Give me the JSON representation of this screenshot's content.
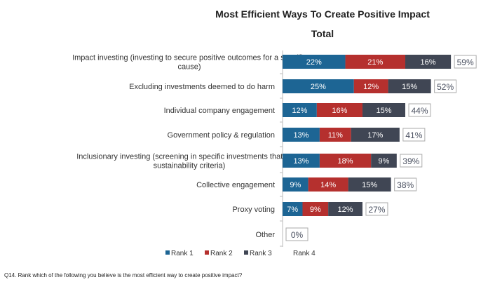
{
  "chart_data": {
    "type": "bar",
    "orientation": "horizontal",
    "stacked": true,
    "title": "Most Efficient Ways To Create Positive Impact",
    "subtitle": "Total",
    "categories": [
      [
        "Impact investing (investing to secure positive outcomes for a specific",
        "cause)"
      ],
      [
        "Excluding investments deemed to do harm"
      ],
      [
        "Individual company engagement"
      ],
      [
        "Government policy & regulation"
      ],
      [
        "Inclusionary investing (screening in specific investments that meet",
        "sustainability criteria)"
      ],
      [
        "Collective engagement"
      ],
      [
        "Proxy voting"
      ],
      [
        "Other"
      ]
    ],
    "series": [
      {
        "name": "Rank 1",
        "color": "#1d6594",
        "values": [
          22,
          25,
          12,
          13,
          13,
          9,
          7,
          0
        ]
      },
      {
        "name": "Rank 2",
        "color": "#b5302e",
        "values": [
          21,
          12,
          16,
          11,
          18,
          14,
          9,
          0
        ]
      },
      {
        "name": "Rank 3",
        "color": "#404654",
        "values": [
          16,
          15,
          15,
          17,
          9,
          15,
          12,
          0
        ]
      },
      {
        "name": "Rank 4",
        "color": "#ffffff",
        "values": [
          0,
          0,
          0,
          0,
          0,
          0,
          0,
          0
        ]
      }
    ],
    "totals": [
      "59%",
      "52%",
      "44%",
      "41%",
      "39%",
      "38%",
      "27%",
      "0%"
    ],
    "legend_placement": "bottom",
    "grid": false
  },
  "footnote": "Q14. Rank which of the following you believe is the most efficient way to create positive impact?"
}
